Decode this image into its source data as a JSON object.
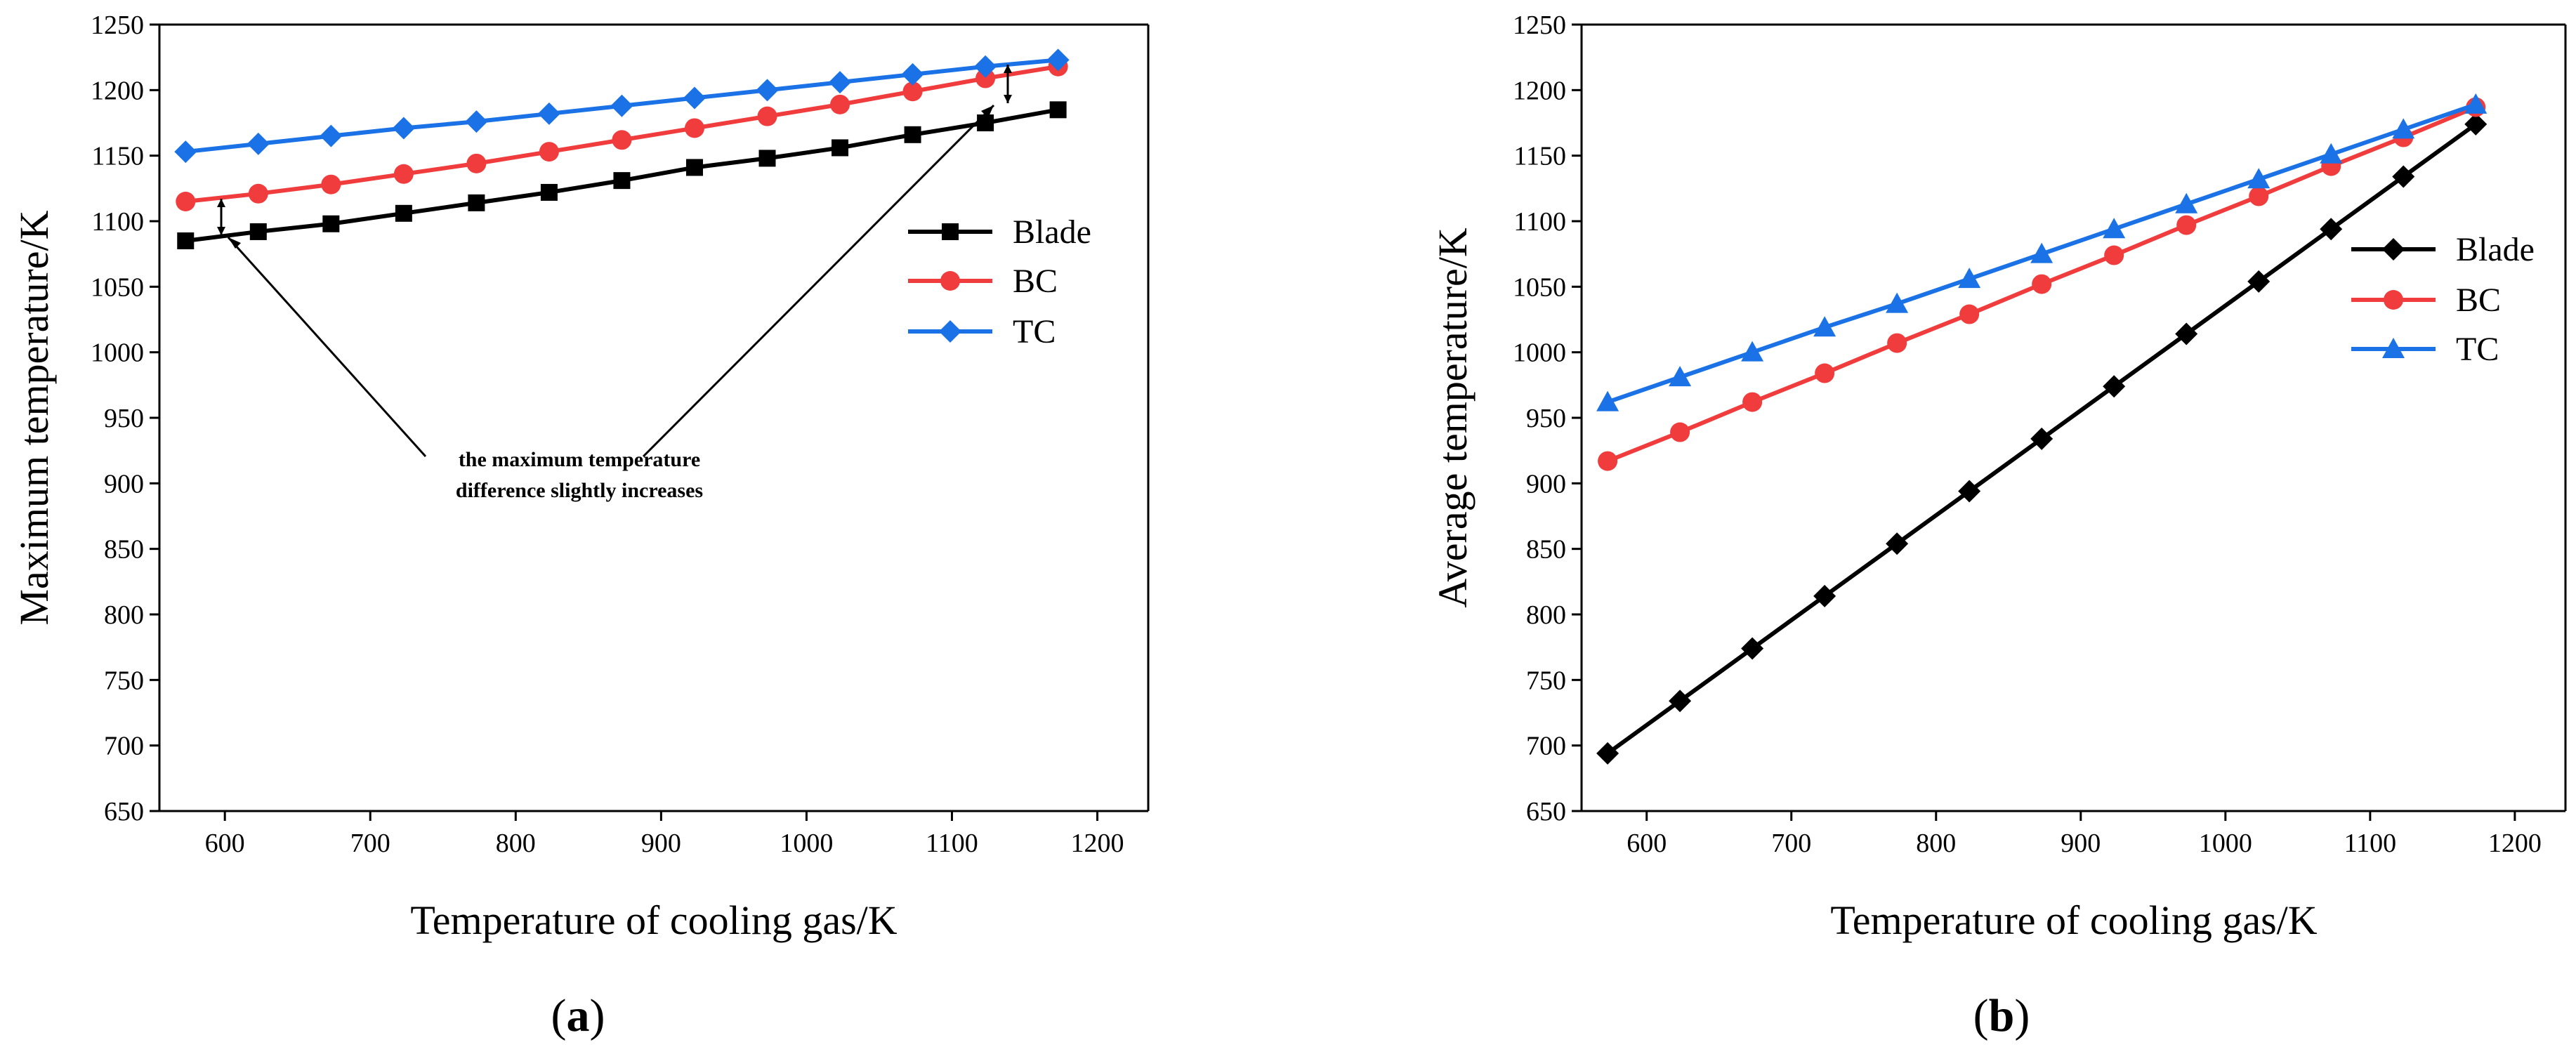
{
  "colors": {
    "Blade": "#000000",
    "BC": "#f03c3c",
    "TC": "#1a72e6"
  },
  "chart_data": [
    {
      "type": "line",
      "panel_label": "(a)",
      "panel_letter": "a",
      "xlabel": "Temperature of cooling gas/K",
      "ylabel": "Maximum temperature/K",
      "xlim": [
        555,
        1235
      ],
      "ylim": [
        650,
        1250
      ],
      "xticks": [
        600,
        700,
        800,
        900,
        1000,
        1100,
        1200
      ],
      "yticks": [
        650,
        700,
        750,
        800,
        850,
        900,
        950,
        1000,
        1050,
        1100,
        1150,
        1200,
        1250
      ],
      "x": [
        573,
        623,
        673,
        723,
        773,
        823,
        873,
        923,
        973,
        1023,
        1073,
        1123,
        1173
      ],
      "series": [
        {
          "name": "Blade",
          "marker": "square",
          "values": [
            1085,
            1092,
            1098,
            1106,
            1114,
            1122,
            1131,
            1141,
            1148,
            1156,
            1166,
            1175,
            1185
          ]
        },
        {
          "name": "BC",
          "marker": "circle",
          "values": [
            1115,
            1121,
            1128,
            1136,
            1144,
            1153,
            1162,
            1171,
            1180,
            1189,
            1199,
            1209,
            1218
          ]
        },
        {
          "name": "TC",
          "marker": "diamond",
          "values": [
            1153,
            1159,
            1165,
            1171,
            1176,
            1182,
            1188,
            1194,
            1200,
            1206,
            1212,
            1218,
            1223
          ]
        }
      ],
      "legend_position": "right",
      "annotation": {
        "line1": "the maximum temperature",
        "line2": "difference slightly increases"
      }
    },
    {
      "type": "line",
      "panel_label": "(b)",
      "panel_letter": "b",
      "xlabel": "Temperature of cooling gas/K",
      "ylabel": "Average temperature/K",
      "xlim": [
        555,
        1235
      ],
      "ylim": [
        650,
        1250
      ],
      "xticks": [
        600,
        700,
        800,
        900,
        1000,
        1100,
        1200
      ],
      "yticks": [
        650,
        700,
        750,
        800,
        850,
        900,
        950,
        1000,
        1050,
        1100,
        1150,
        1200,
        1250
      ],
      "x": [
        573,
        623,
        673,
        723,
        773,
        823,
        873,
        923,
        973,
        1023,
        1073,
        1123,
        1173
      ],
      "series": [
        {
          "name": "Blade",
          "marker": "diamond",
          "values": [
            694,
            734,
            774,
            814,
            854,
            894,
            934,
            974,
            1014,
            1054,
            1094,
            1134,
            1174
          ]
        },
        {
          "name": "BC",
          "marker": "circle",
          "values": [
            917,
            939,
            962,
            984,
            1007,
            1029,
            1052,
            1074,
            1097,
            1119,
            1142,
            1164,
            1187
          ]
        },
        {
          "name": "TC",
          "marker": "triangle",
          "values": [
            962,
            981,
            1000,
            1019,
            1037,
            1056,
            1075,
            1094,
            1113,
            1132,
            1151,
            1170,
            1189
          ]
        }
      ],
      "legend_position": "right"
    }
  ]
}
